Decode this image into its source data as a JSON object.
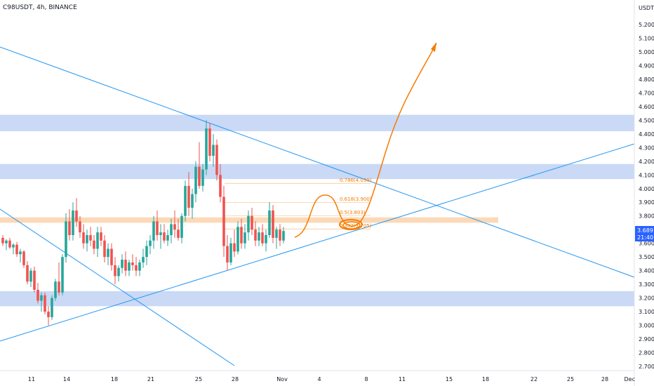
{
  "header": {
    "symbol": "C98USDT, 4h, BINANCE"
  },
  "price_axis": {
    "currency": "USDT"
  },
  "current_price": {
    "value": "3.689",
    "countdown": "21:40",
    "color": "#2962ff"
  },
  "colors": {
    "up": "#26a69a",
    "down": "#ef5350",
    "trendline": "#2196f3",
    "zone_blue": "#c6d7f5",
    "zone_orange": "#fbd5b0",
    "projection": "#f57c00"
  },
  "chart_data": {
    "type": "candlestick",
    "title": "C98USDT, 4h, BINANCE",
    "ylim": [
      2.65,
      5.25
    ],
    "y_ticks": [
      "5.200",
      "5.100",
      "5.000",
      "4.900",
      "4.800",
      "4.700",
      "4.600",
      "4.500",
      "4.400",
      "4.300",
      "4.200",
      "4.100",
      "4.000",
      "3.900",
      "3.800",
      "3.700",
      "3.600",
      "3.500",
      "3.400",
      "3.300",
      "3.200",
      "3.100",
      "3.000",
      "2.900",
      "2.800",
      "2.700"
    ],
    "x_ticks": [
      "11",
      "14",
      "18",
      "21",
      "25",
      "28",
      "Nov",
      "4",
      "8",
      "11",
      "15",
      "18",
      "22",
      "25",
      "28",
      "Dec"
    ],
    "resistance_zones": [
      {
        "from": 4.42,
        "to": 4.54,
        "color": "blue"
      },
      {
        "from": 4.07,
        "to": 4.18,
        "color": "blue"
      },
      {
        "from": 3.14,
        "to": 3.25,
        "color": "blue"
      },
      {
        "from": 3.75,
        "to": 3.79,
        "color": "orange"
      }
    ],
    "fib_levels": [
      {
        "label": "0.786(4.039)",
        "price": 4.039
      },
      {
        "label": "0.618(3.900)",
        "price": 3.9
      },
      {
        "label": "0.5(3.803)",
        "price": 3.803
      },
      {
        "label": "0.382(3.705)",
        "price": 3.705
      }
    ],
    "candles": [
      [
        3.64,
        3.66,
        3.58,
        3.6
      ],
      [
        3.6,
        3.63,
        3.55,
        3.62
      ],
      [
        3.62,
        3.64,
        3.56,
        3.57
      ],
      [
        3.57,
        3.6,
        3.52,
        3.59
      ],
      [
        3.59,
        3.61,
        3.5,
        3.52
      ],
      [
        3.52,
        3.56,
        3.46,
        3.54
      ],
      [
        3.54,
        3.55,
        3.42,
        3.44
      ],
      [
        3.44,
        3.47,
        3.3,
        3.32
      ],
      [
        3.32,
        3.42,
        3.28,
        3.4
      ],
      [
        3.4,
        3.43,
        3.24,
        3.26
      ],
      [
        3.26,
        3.31,
        3.16,
        3.18
      ],
      [
        3.18,
        3.24,
        3.1,
        3.22
      ],
      [
        3.22,
        3.24,
        3.08,
        3.1
      ],
      [
        3.1,
        3.14,
        3.0,
        3.06
      ],
      [
        3.06,
        3.22,
        3.04,
        3.2
      ],
      [
        3.2,
        3.34,
        3.18,
        3.32
      ],
      [
        3.32,
        3.46,
        3.22,
        3.24
      ],
      [
        3.24,
        3.52,
        3.22,
        3.5
      ],
      [
        3.5,
        3.82,
        3.46,
        3.76
      ],
      [
        3.76,
        3.85,
        3.62,
        3.66
      ],
      [
        3.66,
        3.9,
        3.62,
        3.84
      ],
      [
        3.84,
        3.93,
        3.72,
        3.76
      ],
      [
        3.76,
        3.8,
        3.64,
        3.68
      ],
      [
        3.68,
        3.74,
        3.56,
        3.6
      ],
      [
        3.6,
        3.7,
        3.54,
        3.66
      ],
      [
        3.66,
        3.72,
        3.58,
        3.62
      ],
      [
        3.62,
        3.66,
        3.52,
        3.56
      ],
      [
        3.56,
        3.72,
        3.5,
        3.68
      ],
      [
        3.68,
        3.72,
        3.58,
        3.62
      ],
      [
        3.62,
        3.66,
        3.46,
        3.5
      ],
      [
        3.5,
        3.6,
        3.44,
        3.56
      ],
      [
        3.56,
        3.6,
        3.4,
        3.44
      ],
      [
        3.44,
        3.5,
        3.3,
        3.36
      ],
      [
        3.36,
        3.44,
        3.32,
        3.42
      ],
      [
        3.42,
        3.52,
        3.38,
        3.48
      ],
      [
        3.48,
        3.54,
        3.36,
        3.4
      ],
      [
        3.4,
        3.48,
        3.36,
        3.46
      ],
      [
        3.46,
        3.52,
        3.4,
        3.44
      ],
      [
        3.44,
        3.5,
        3.36,
        3.4
      ],
      [
        3.4,
        3.48,
        3.36,
        3.46
      ],
      [
        3.46,
        3.56,
        3.42,
        3.5
      ],
      [
        3.5,
        3.62,
        3.44,
        3.58
      ],
      [
        3.58,
        3.66,
        3.52,
        3.62
      ],
      [
        3.62,
        3.8,
        3.56,
        3.76
      ],
      [
        3.76,
        3.84,
        3.62,
        3.66
      ],
      [
        3.66,
        3.74,
        3.56,
        3.68
      ],
      [
        3.68,
        3.74,
        3.6,
        3.62
      ],
      [
        3.62,
        3.7,
        3.58,
        3.66
      ],
      [
        3.66,
        3.78,
        3.6,
        3.74
      ],
      [
        3.74,
        3.84,
        3.64,
        3.7
      ],
      [
        3.7,
        3.78,
        3.62,
        3.64
      ],
      [
        3.64,
        3.82,
        3.6,
        3.8
      ],
      [
        3.8,
        4.06,
        3.76,
        4.02
      ],
      [
        4.02,
        4.12,
        3.8,
        3.86
      ],
      [
        3.86,
        4.0,
        3.78,
        3.96
      ],
      [
        3.96,
        4.2,
        3.9,
        4.16
      ],
      [
        4.16,
        4.34,
        4.0,
        4.02
      ],
      [
        4.02,
        4.18,
        3.98,
        4.14
      ],
      [
        4.14,
        4.5,
        4.1,
        4.44
      ],
      [
        4.44,
        4.48,
        4.2,
        4.24
      ],
      [
        4.24,
        4.4,
        4.16,
        4.32
      ],
      [
        4.32,
        4.36,
        4.06,
        4.1
      ],
      [
        4.1,
        4.18,
        3.9,
        3.94
      ],
      [
        3.94,
        4.02,
        3.5,
        3.58
      ],
      [
        3.58,
        3.66,
        3.4,
        3.46
      ],
      [
        3.46,
        3.64,
        3.44,
        3.6
      ],
      [
        3.6,
        3.7,
        3.5,
        3.54
      ],
      [
        3.54,
        3.76,
        3.52,
        3.72
      ],
      [
        3.72,
        3.78,
        3.56,
        3.6
      ],
      [
        3.6,
        3.74,
        3.56,
        3.68
      ],
      [
        3.68,
        3.84,
        3.62,
        3.8
      ],
      [
        3.8,
        3.86,
        3.66,
        3.7
      ],
      [
        3.7,
        3.76,
        3.58,
        3.62
      ],
      [
        3.62,
        3.72,
        3.58,
        3.68
      ],
      [
        3.68,
        3.74,
        3.58,
        3.6
      ],
      [
        3.6,
        3.7,
        3.54,
        3.66
      ],
      [
        3.66,
        3.9,
        3.64,
        3.84
      ],
      [
        3.84,
        3.88,
        3.6,
        3.64
      ],
      [
        3.64,
        3.72,
        3.56,
        3.7
      ],
      [
        3.7,
        3.74,
        3.58,
        3.62
      ],
      [
        3.62,
        3.72,
        3.6,
        3.69
      ]
    ]
  }
}
